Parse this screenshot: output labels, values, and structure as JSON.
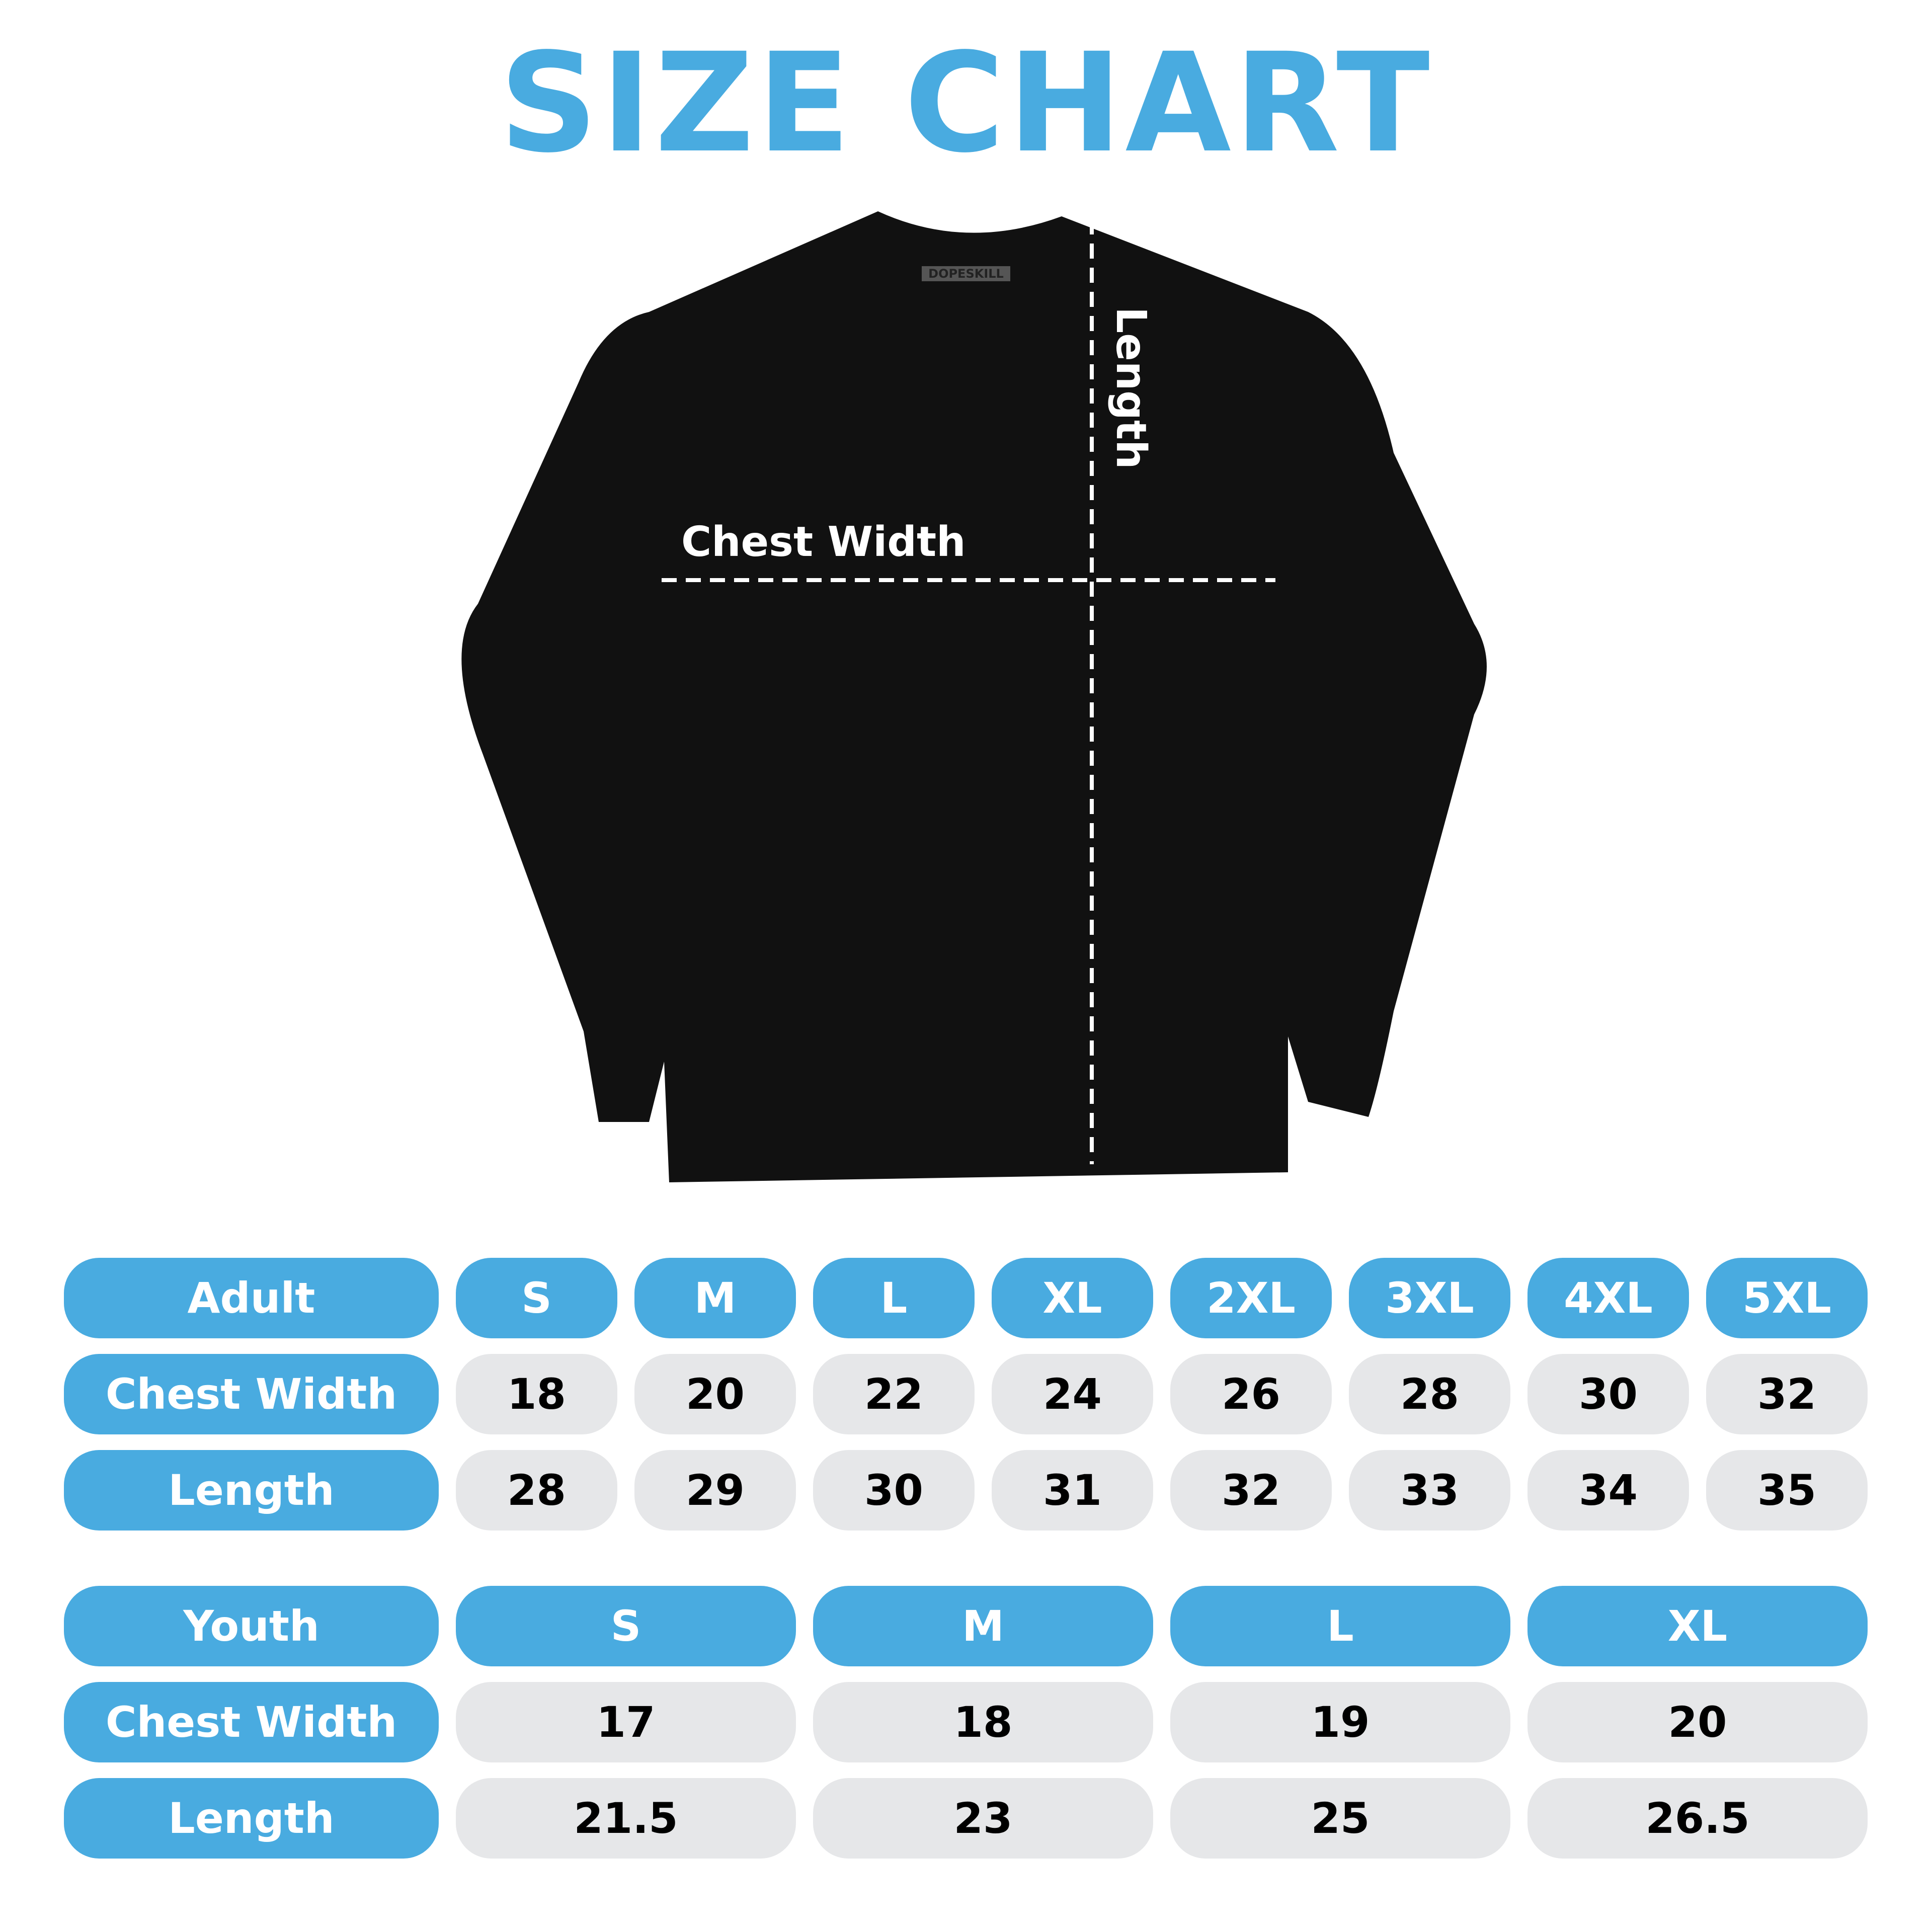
{
  "title": "SIZE CHART",
  "colors": {
    "accent": "#49ABE0",
    "cell": "#E6E7E9",
    "shirt": "#111111"
  },
  "shirt": {
    "brand_tag": "DOPESKILL",
    "chest_label": "Chest Width",
    "length_label": "Length"
  },
  "adult": {
    "header": "Adult",
    "sizes": [
      "S",
      "M",
      "L",
      "XL",
      "2XL",
      "3XL",
      "4XL",
      "5XL"
    ],
    "rows": [
      {
        "label": "Chest Width",
        "values": [
          "18",
          "20",
          "22",
          "24",
          "26",
          "28",
          "30",
          "32"
        ]
      },
      {
        "label": "Length",
        "values": [
          "28",
          "29",
          "30",
          "31",
          "32",
          "33",
          "34",
          "35"
        ]
      }
    ]
  },
  "youth": {
    "header": "Youth",
    "sizes": [
      "S",
      "M",
      "L",
      "XL"
    ],
    "rows": [
      {
        "label": "Chest Width",
        "values": [
          "17",
          "18",
          "19",
          "20"
        ]
      },
      {
        "label": "Length",
        "values": [
          "21.5",
          "23",
          "25",
          "26.5"
        ]
      }
    ]
  }
}
